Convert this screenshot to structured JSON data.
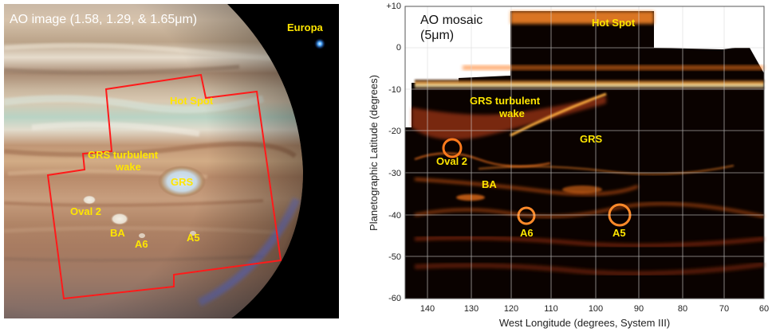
{
  "left_panel": {
    "title": "AO image (1.58, 1.29, & 1.65μm)",
    "europa_label": "Europa",
    "labels": {
      "hot_spot": "Hot Spot",
      "grs_wake_line1": "GRS turbulent",
      "grs_wake_line2": "wake",
      "grs": "GRS",
      "oval2": "Oval 2",
      "ba": "BA",
      "a6": "A6",
      "a5": "A5"
    }
  },
  "right_panel": {
    "title_line1": "AO mosaic",
    "title_line2": "(5μm)",
    "labels": {
      "hot_spot": "Hot Spot",
      "grs_wake_line1": "GRS turbulent",
      "grs_wake_line2": "wake",
      "grs": "GRS",
      "oval2": "Oval 2",
      "ba": "BA",
      "a6": "A6",
      "a5": "A5"
    },
    "x_axis_label": "West Longitude (degrees, System III)",
    "y_axis_label": "Planetographic Latitude (degrees)",
    "x_ticks": [
      "140",
      "130",
      "120",
      "110",
      "100",
      "90",
      "80",
      "70",
      "60"
    ],
    "y_ticks": [
      "+10",
      "0",
      "-10",
      "-20",
      "-30",
      "-40",
      "-50",
      "-60"
    ]
  },
  "colors": {
    "annotation": "#ffe600",
    "outline": "#ff1a1a"
  }
}
